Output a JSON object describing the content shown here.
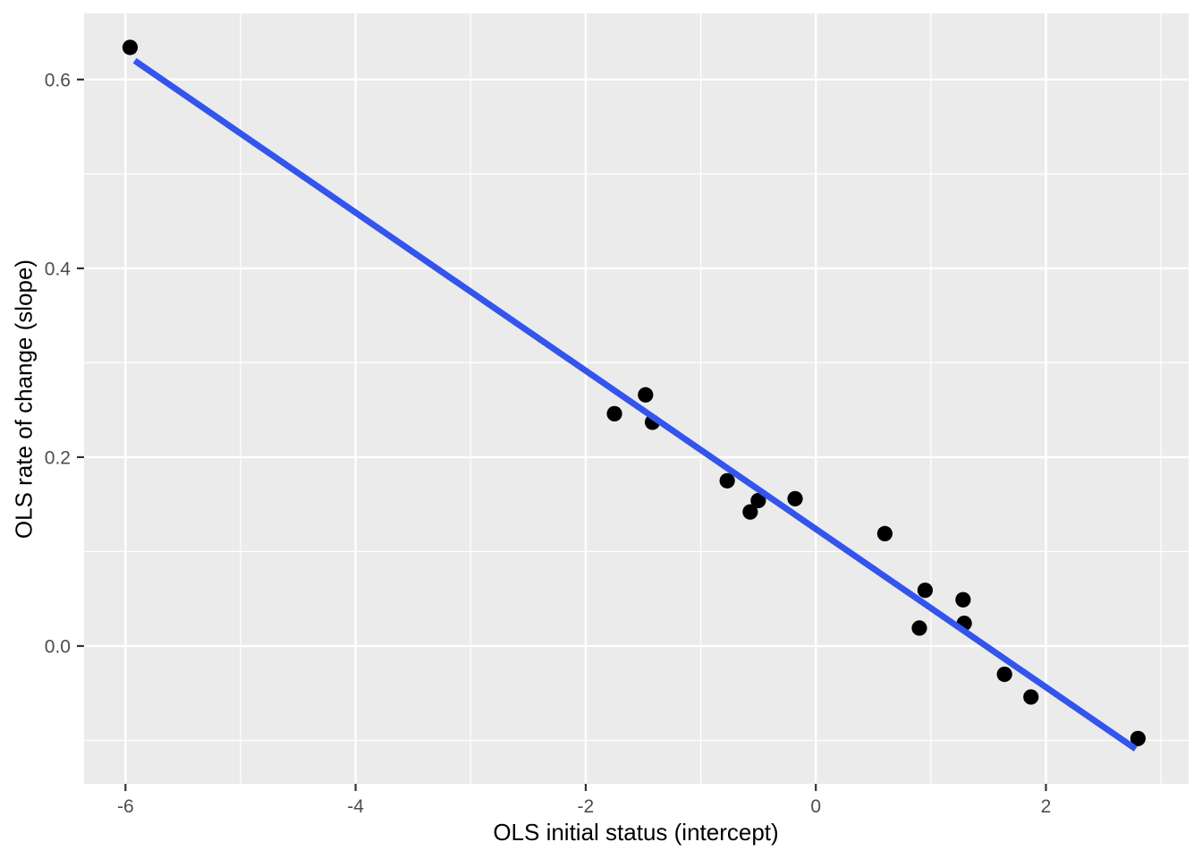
{
  "chart_data": {
    "type": "scatter",
    "title": "",
    "xlabel": "OLS initial status (intercept)",
    "ylabel": "OLS rate of change (slope)",
    "xlim": [
      -6.36,
      3.24
    ],
    "ylim": [
      -0.146,
      0.67
    ],
    "grid": "major+minor",
    "legend_position": "none",
    "x_ticks": {
      "major": [
        {
          "value": -6,
          "label": "-6"
        },
        {
          "value": -4,
          "label": "-4"
        },
        {
          "value": -2,
          "label": "-2"
        },
        {
          "value": 0,
          "label": "0"
        },
        {
          "value": 2,
          "label": "2"
        }
      ],
      "minor": [
        -5,
        -3,
        -1,
        1,
        3
      ]
    },
    "y_ticks": {
      "major": [
        {
          "value": 0.0,
          "label": "0.0"
        },
        {
          "value": 0.2,
          "label": "0.2"
        },
        {
          "value": 0.4,
          "label": "0.4"
        },
        {
          "value": 0.6,
          "label": "0.6"
        }
      ],
      "minor": [
        -0.1,
        0.1,
        0.3,
        0.5
      ]
    },
    "points": [
      {
        "x": -5.96,
        "y": 0.634
      },
      {
        "x": -1.75,
        "y": 0.246
      },
      {
        "x": -1.48,
        "y": 0.266
      },
      {
        "x": -1.42,
        "y": 0.237
      },
      {
        "x": -0.77,
        "y": 0.175
      },
      {
        "x": -0.57,
        "y": 0.142
      },
      {
        "x": -0.5,
        "y": 0.154
      },
      {
        "x": -0.18,
        "y": 0.156
      },
      {
        "x": 0.6,
        "y": 0.119
      },
      {
        "x": 0.9,
        "y": 0.019
      },
      {
        "x": 0.95,
        "y": 0.059
      },
      {
        "x": 1.28,
        "y": 0.049
      },
      {
        "x": 1.29,
        "y": 0.024
      },
      {
        "x": 1.64,
        "y": -0.03
      },
      {
        "x": 1.87,
        "y": -0.054
      },
      {
        "x": 2.8,
        "y": -0.098
      }
    ],
    "trend_line": {
      "x1": -5.92,
      "y1": 0.62,
      "x2": 2.78,
      "y2": -0.109
    },
    "colors": {
      "figure_background": "#FFFFFF",
      "panel_background": "#EBEBEB",
      "grid_lines": "#FFFFFF",
      "points": "#000000",
      "trend_line": "#3355EE",
      "tick_labels": "#4D4D4D",
      "tick_marks": "#333333",
      "axis_titles": "#000000"
    }
  }
}
